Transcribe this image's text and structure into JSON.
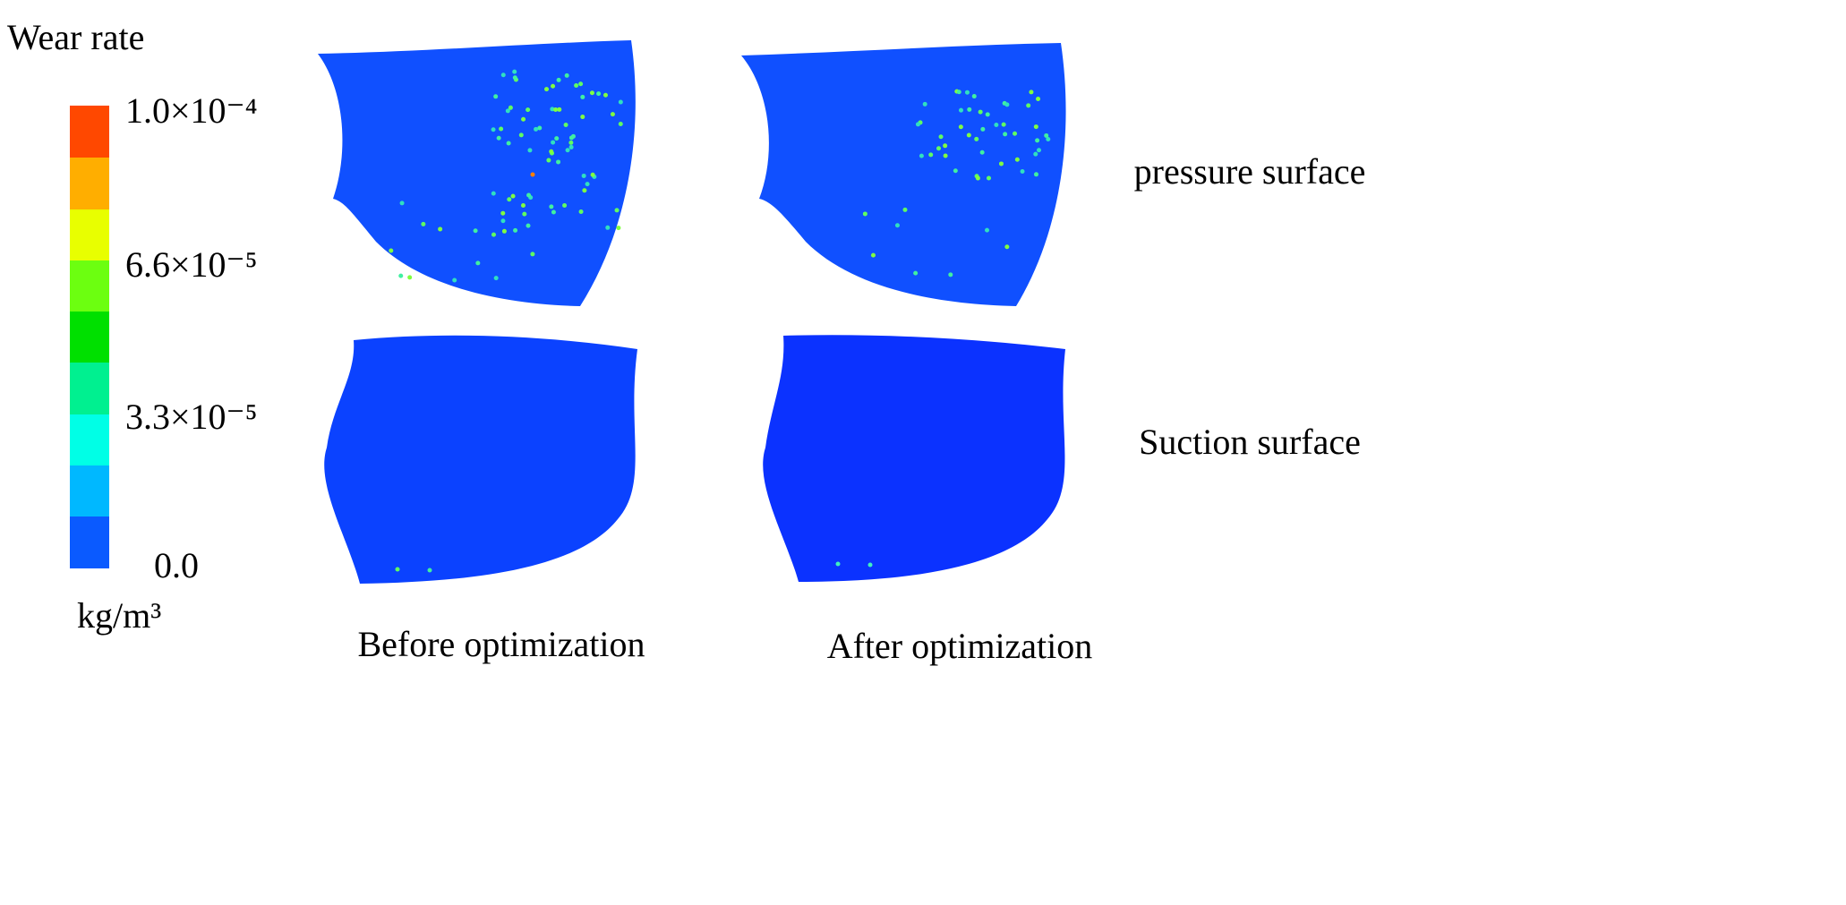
{
  "legend": {
    "title": "Wear rate",
    "ticks": [
      "1.0×10⁻⁴",
      "6.6×10⁻⁵",
      "3.3×10⁻⁵",
      "0.0"
    ],
    "unit": "kg/m³"
  },
  "columns": [
    "Before optimization",
    "After optimization"
  ],
  "rows": [
    "pressure surface",
    "Suction surface"
  ]
}
